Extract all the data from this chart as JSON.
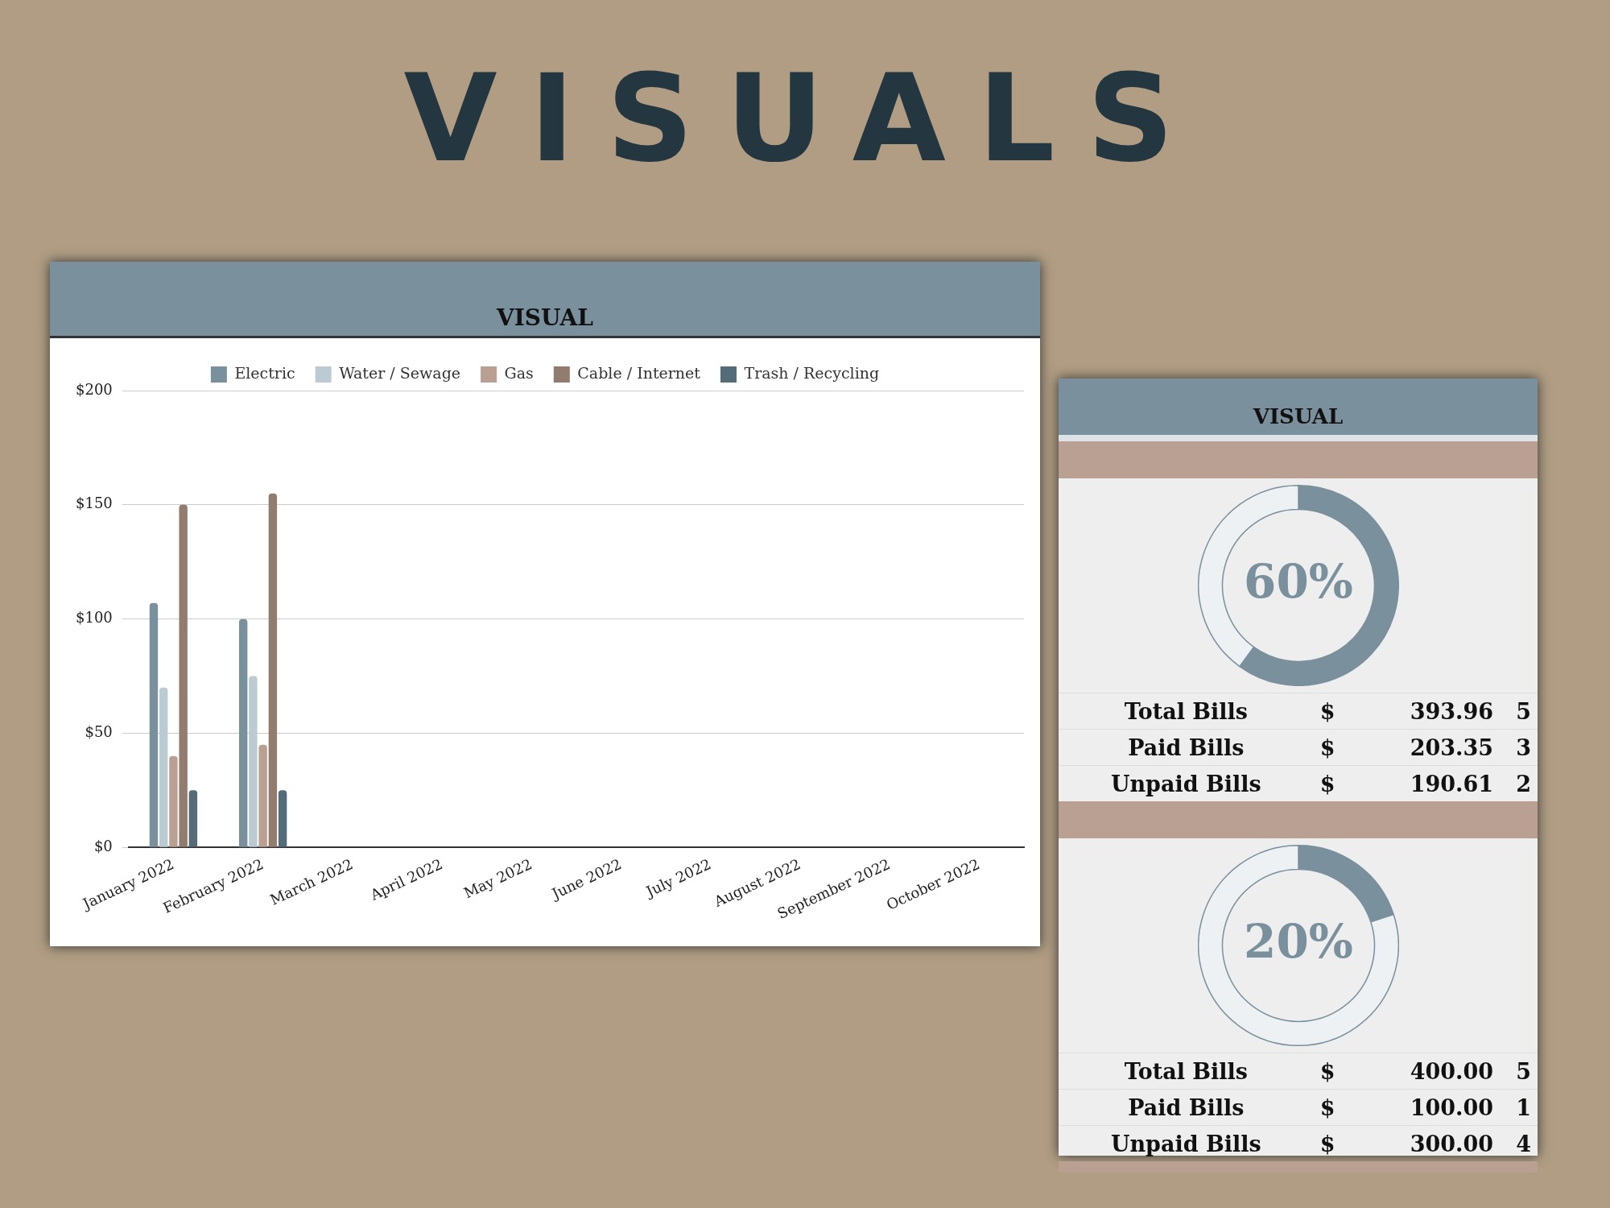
{
  "chart_data": [
    {
      "type": "bar",
      "title": "VISUALS",
      "subtitle": "VISUAL",
      "categories": [
        "January 2022",
        "February 2022",
        "March 2022",
        "April 2022",
        "May 2022",
        "June 2022",
        "July 2022",
        "August 2022",
        "September 2022",
        "October 2022"
      ],
      "series": [
        {
          "name": "Electric",
          "color": "#7a909c",
          "values": [
            107,
            100,
            null,
            null,
            null,
            null,
            null,
            null,
            null,
            null
          ]
        },
        {
          "name": "Water / Sewage",
          "color": "#bccad2",
          "values": [
            70,
            75,
            null,
            null,
            null,
            null,
            null,
            null,
            null,
            null
          ]
        },
        {
          "name": "Gas",
          "color": "#b9a093",
          "values": [
            40,
            45,
            null,
            null,
            null,
            null,
            null,
            null,
            null,
            null
          ]
        },
        {
          "name": "Cable / Internet",
          "color": "#927b6f",
          "values": [
            150,
            155,
            null,
            null,
            null,
            null,
            null,
            null,
            null,
            null
          ]
        },
        {
          "name": "Trash / Recycling",
          "color": "#546b78",
          "values": [
            25,
            25,
            null,
            null,
            null,
            null,
            null,
            null,
            null,
            null
          ]
        }
      ],
      "ylim": [
        0,
        200
      ],
      "yticks": [
        {
          "value": 0,
          "label": "$0"
        },
        {
          "value": 50,
          "label": "$50"
        },
        {
          "value": 100,
          "label": "$100"
        },
        {
          "value": 150,
          "label": "$150"
        },
        {
          "value": 200,
          "label": "$200"
        }
      ],
      "grid": "y",
      "legend": "top"
    },
    {
      "type": "donut",
      "title": "VISUAL",
      "categories": [
        null,
        null
      ],
      "values": [
        60,
        40
      ],
      "colors": [
        "#7a909c",
        "#edf1f3"
      ],
      "annotations": [
        "60%"
      ]
    },
    {
      "type": "other",
      "annotations": [
        "Total Bills",
        "$",
        "393.96",
        "5",
        "Paid Bills",
        "$",
        "203.35",
        "3",
        "Unpaid Bills",
        "$",
        "190.61",
        "2"
      ]
    },
    {
      "type": "donut",
      "categories": [
        null,
        null
      ],
      "values": [
        20,
        80
      ],
      "colors": [
        "#7a909c",
        "#edf1f3"
      ],
      "annotations": [
        "20%"
      ]
    },
    {
      "type": "other",
      "annotations": [
        "Total Bills",
        "$",
        "400.00",
        "5",
        "Paid Bills",
        "$",
        "100.00",
        "1",
        "Unpaid Bills",
        "$",
        "300.00",
        "4"
      ]
    }
  ]
}
